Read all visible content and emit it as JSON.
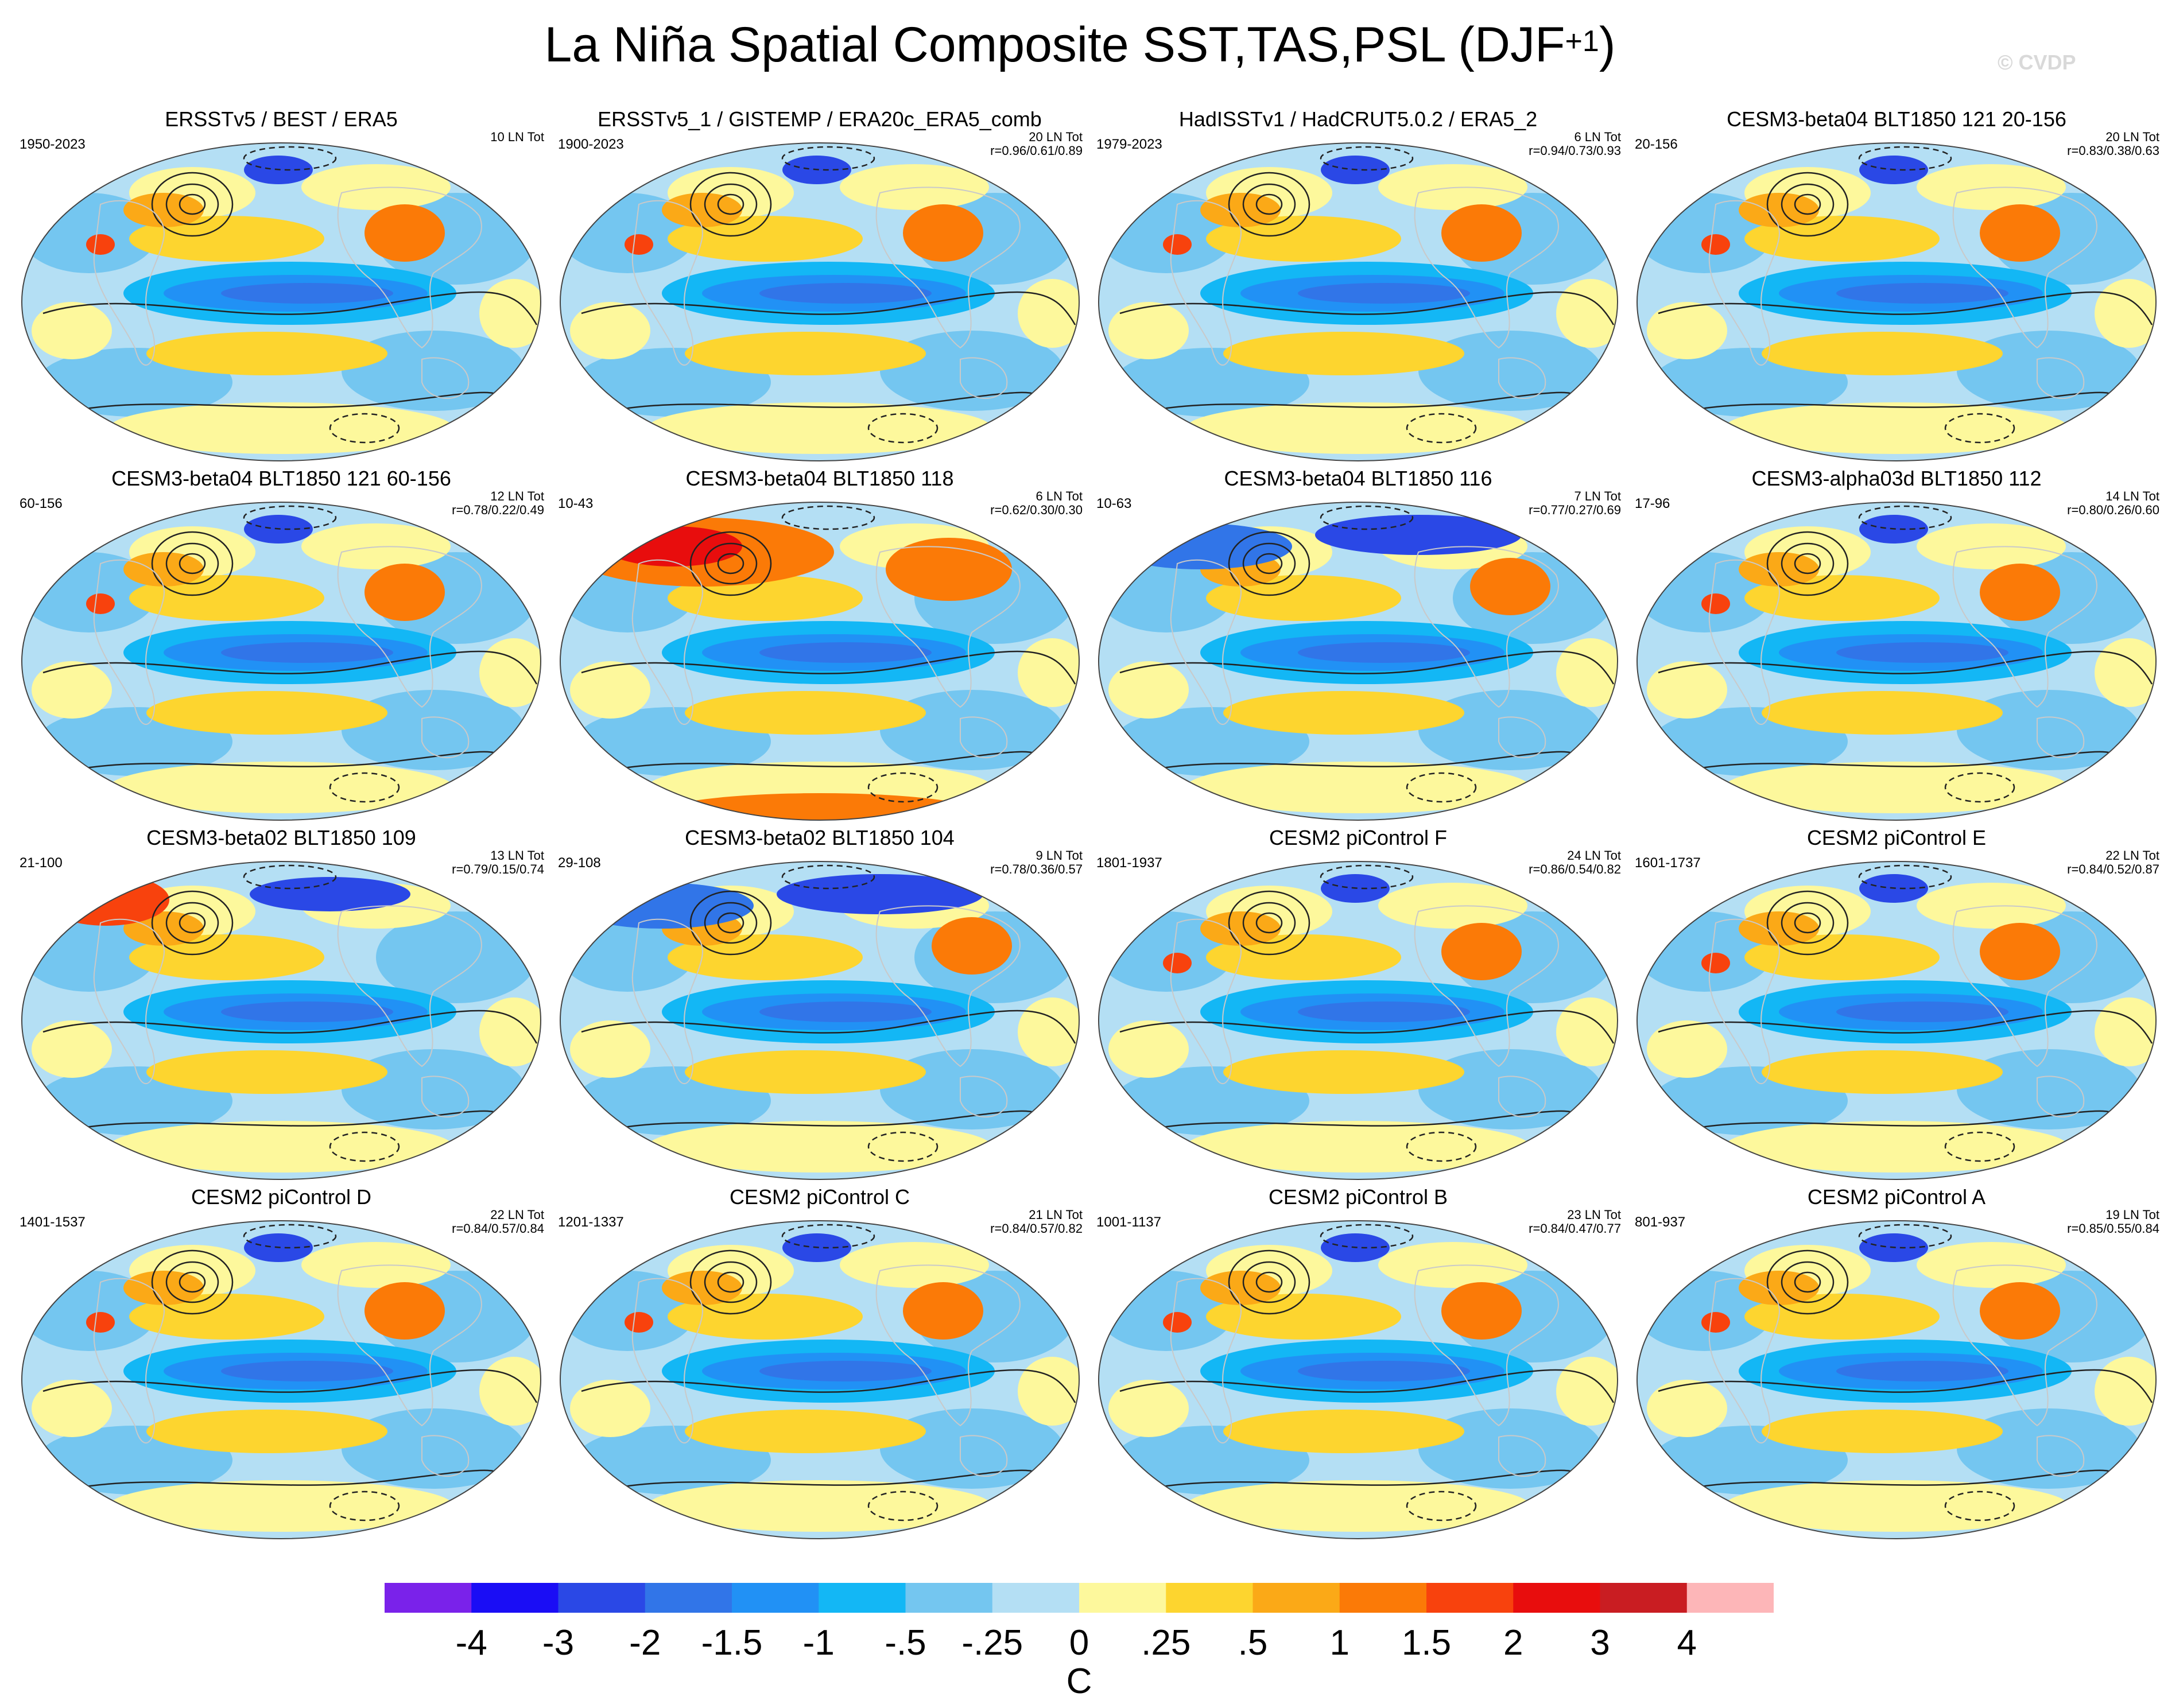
{
  "title": {
    "text": "La Niña Spatial Composite SST,TAS,PSL (DJF",
    "superscript": "+1",
    "close": ")"
  },
  "watermark": "© CVDP",
  "chart_data": {
    "type": "heatmap",
    "variables": "SST,TAS,PSL",
    "season": "DJF+1",
    "units": "C",
    "colorbar": {
      "labels": [
        "-4",
        "-3",
        "-2",
        "-1.5",
        "-1",
        "-.5",
        "-.25",
        "0",
        ".25",
        ".5",
        "1",
        "1.5",
        "2",
        "3",
        "4"
      ],
      "colors": [
        "#7a22ea",
        "#1a0df5",
        "#2a48e6",
        "#3175e8",
        "#2191f5",
        "#13b7f5",
        "#74c6f0",
        "#b4dff4",
        "#fdf89c",
        "#fdd52f",
        "#fba917",
        "#fb7a07",
        "#f8420d",
        "#e80d0d",
        "#c91d22",
        "#fdb6b8"
      ]
    },
    "panels": [
      {
        "title": "ERSSTv5 / BEST / ERA5",
        "years": "1950-2023",
        "count": "10 LN Tot",
        "corr": ""
      },
      {
        "title": "ERSSTv5_1 / GISTEMP / ERA20c_ERA5_comb",
        "years": "1900-2023",
        "count": "20 LN Tot",
        "corr": "r=0.96/0.61/0.89"
      },
      {
        "title": "HadISSTv1 / HadCRUT5.0.2 / ERA5_2",
        "years": "1979-2023",
        "count": "6 LN Tot",
        "corr": "r=0.94/0.73/0.93"
      },
      {
        "title": "CESM3-beta04 BLT1850 121 20-156",
        "years": "20-156",
        "count": "20 LN Tot",
        "corr": "r=0.83/0.38/0.63"
      },
      {
        "title": "CESM3-beta04 BLT1850 121 60-156",
        "years": "60-156",
        "count": "12 LN Tot",
        "corr": "r=0.78/0.22/0.49"
      },
      {
        "title": "CESM3-beta04 BLT1850 118",
        "years": "10-43",
        "count": "6 LN Tot",
        "corr": "r=0.62/0.30/0.30"
      },
      {
        "title": "CESM3-beta04 BLT1850 116",
        "years": "10-63",
        "count": "7 LN Tot",
        "corr": "r=0.77/0.27/0.69"
      },
      {
        "title": "CESM3-alpha03d BLT1850 112",
        "years": "17-96",
        "count": "14 LN Tot",
        "corr": "r=0.80/0.26/0.60"
      },
      {
        "title": "CESM3-beta02 BLT1850 109",
        "years": "21-100",
        "count": "13 LN Tot",
        "corr": "r=0.79/0.15/0.74"
      },
      {
        "title": "CESM3-beta02 BLT1850 104",
        "years": "29-108",
        "count": "9 LN Tot",
        "corr": "r=0.78/0.36/0.57"
      },
      {
        "title": "CESM2 piControl F",
        "years": "1801-1937",
        "count": "24 LN Tot",
        "corr": "r=0.86/0.54/0.82"
      },
      {
        "title": "CESM2 piControl E",
        "years": "1601-1737",
        "count": "22 LN Tot",
        "corr": "r=0.84/0.52/0.87"
      },
      {
        "title": "CESM2 piControl D",
        "years": "1401-1537",
        "count": "22 LN Tot",
        "corr": "r=0.84/0.57/0.84"
      },
      {
        "title": "CESM2 piControl C",
        "years": "1201-1337",
        "count": "21 LN Tot",
        "corr": "r=0.84/0.57/0.82"
      },
      {
        "title": "CESM2 piControl B",
        "years": "1001-1137",
        "count": "23 LN Tot",
        "corr": "r=0.84/0.47/0.77"
      },
      {
        "title": "CESM2 piControl A",
        "years": "801-937",
        "count": "19 LN Tot",
        "corr": "r=0.85/0.55/0.84"
      }
    ]
  }
}
